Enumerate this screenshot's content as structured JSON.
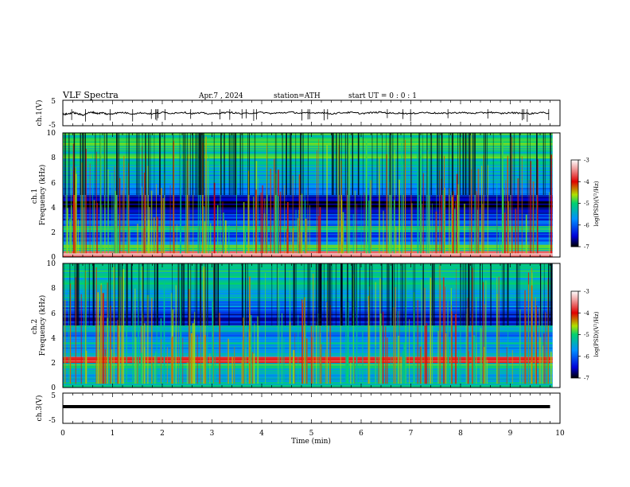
{
  "header": {
    "title": "VLF  Spectra",
    "date": "Apr.7  , 2024",
    "station": "station=ATH",
    "start": "start  UT  =   0  : 0  : 1"
  },
  "chart_data": [
    {
      "type": "line",
      "name": "ch1-waveform",
      "ylabel": "ch.1(V)",
      "ylim": [
        -5,
        5
      ],
      "ytick_labels": [
        "5",
        "-5"
      ],
      "x": [
        0,
        0.1,
        0.2,
        0.3,
        0.4,
        0.5,
        0.6,
        0.7,
        0.8,
        0.9,
        1.0,
        1.2,
        1.4,
        1.6,
        1.8,
        2.0,
        2.2,
        2.4,
        2.6,
        2.8,
        3.0,
        3.2,
        3.4,
        3.6,
        3.8,
        4.0,
        4.2,
        4.4,
        4.6,
        4.8,
        5.0,
        5.2,
        5.4,
        5.6,
        5.8,
        6.0,
        6.2,
        6.4,
        6.6,
        6.8,
        7.0,
        7.2,
        7.4,
        7.6,
        7.8,
        8.0,
        8.2,
        8.4,
        8.6,
        8.8,
        9.0,
        9.2,
        9.4,
        9.6,
        9.8
      ],
      "y": [
        -0.5,
        -0.4,
        0.2,
        -0.3,
        -0.8,
        0.0,
        0.3,
        -0.2,
        0.1,
        -0.5,
        -0.2,
        0.2,
        -0.3,
        0.1,
        -0.4,
        0.2,
        -0.1,
        0.3,
        -0.2,
        0.0,
        -0.4,
        0.1,
        0.2,
        -0.3,
        0.0,
        0.2,
        -0.2,
        0.1,
        0.3,
        -0.1,
        0.0,
        0.2,
        -0.3,
        0.1,
        0.2,
        -0.2,
        0.1,
        0.3,
        -0.1,
        0.0,
        -0.3,
        0.2,
        0.1,
        -0.2,
        0.0,
        0.2,
        -0.1,
        0.0,
        0.3,
        -0.2,
        0.1,
        0.0,
        -0.3,
        0.2,
        -0.1
      ]
    },
    {
      "type": "heatmap",
      "name": "ch1-spectrogram",
      "ylabel": "ch.1\nFrequency (kHz)",
      "xlim": [
        0,
        10
      ],
      "ylim": [
        0,
        10
      ],
      "ytick_labels": [
        "0",
        "2",
        "4",
        "6",
        "8",
        "10"
      ],
      "colorbar_label": "log(PSD)(V²/Hz)",
      "colorbar_range": [
        -7,
        -3
      ],
      "colorbar_tick_labels": [
        "-3",
        "-4",
        "-5",
        "-6",
        "-7"
      ],
      "colorbar_colors": [
        "#000000",
        "#0000d8",
        "#0090ff",
        "#00d070",
        "#b0e000",
        "#e00000",
        "#f0a0a0",
        "#ffffff"
      ],
      "band_log_psd": [
        {
          "f": [
            0.0,
            0.5
          ],
          "v": -3.6
        },
        {
          "f": [
            0.5,
            1.0
          ],
          "v": -5.0
        },
        {
          "f": [
            1.0,
            1.5
          ],
          "v": -5.9
        },
        {
          "f": [
            1.5,
            2.0
          ],
          "v": -6.2
        },
        {
          "f": [
            2.0,
            2.5
          ],
          "v": -5.1
        },
        {
          "f": [
            2.5,
            3.0
          ],
          "v": -6.0
        },
        {
          "f": [
            3.0,
            3.5
          ],
          "v": -6.3
        },
        {
          "f": [
            3.5,
            4.0
          ],
          "v": -6.5
        },
        {
          "f": [
            4.0,
            4.5
          ],
          "v": -6.9
        },
        {
          "f": [
            4.5,
            5.0
          ],
          "v": -6.4
        },
        {
          "f": [
            5.0,
            6.0
          ],
          "v": -5.8
        },
        {
          "f": [
            6.0,
            7.0
          ],
          "v": -5.5
        },
        {
          "f": [
            7.0,
            8.0
          ],
          "v": -5.3
        },
        {
          "f": [
            8.0,
            9.0
          ],
          "v": -5.1
        },
        {
          "f": [
            9.0,
            10.0
          ],
          "v": -5.0
        }
      ]
    },
    {
      "type": "heatmap",
      "name": "ch2-spectrogram",
      "ylabel": "ch.2\nFrequency (kHz)",
      "xlim": [
        0,
        10
      ],
      "ylim": [
        0,
        10
      ],
      "ytick_labels": [
        "0",
        "2",
        "4",
        "6",
        "8",
        "10"
      ],
      "colorbar_label": "log(PSD)(V²/Hz)",
      "colorbar_range": [
        -7,
        -3
      ],
      "colorbar_tick_labels": [
        "-3",
        "-4",
        "-5",
        "-6",
        "-7"
      ],
      "colorbar_colors": [
        "#000000",
        "#0000d8",
        "#0090ff",
        "#00d070",
        "#b0e000",
        "#e00000",
        "#f0a0a0",
        "#ffffff"
      ],
      "band_log_psd": [
        {
          "f": [
            0.0,
            0.5
          ],
          "v": -5.4
        },
        {
          "f": [
            0.5,
            1.0
          ],
          "v": -5.5
        },
        {
          "f": [
            1.0,
            1.5
          ],
          "v": -5.6
        },
        {
          "f": [
            1.5,
            2.0
          ],
          "v": -5.0
        },
        {
          "f": [
            2.0,
            2.5
          ],
          "v": -3.8
        },
        {
          "f": [
            2.5,
            3.0
          ],
          "v": -5.4
        },
        {
          "f": [
            3.0,
            3.5
          ],
          "v": -5.7
        },
        {
          "f": [
            3.5,
            4.0
          ],
          "v": -5.5
        },
        {
          "f": [
            4.0,
            4.5
          ],
          "v": -5.9
        },
        {
          "f": [
            4.5,
            5.0
          ],
          "v": -5.3
        },
        {
          "f": [
            5.0,
            6.0
          ],
          "v": -6.4
        },
        {
          "f": [
            6.0,
            7.0
          ],
          "v": -5.9
        },
        {
          "f": [
            7.0,
            8.0
          ],
          "v": -5.5
        },
        {
          "f": [
            8.0,
            9.0
          ],
          "v": -5.3
        },
        {
          "f": [
            9.0,
            10.0
          ],
          "v": -5.2
        }
      ]
    },
    {
      "type": "line",
      "name": "ch3-waveform",
      "ylabel": "ch.3(V)",
      "ylim": [
        -5,
        5
      ],
      "ytick_labels": [
        "5",
        "-5"
      ],
      "x": [
        0.0,
        9.8
      ],
      "y": [
        0.0,
        0.0
      ],
      "xlim": [
        0,
        10
      ],
      "xtick_labels": [
        "0",
        "1",
        "2",
        "3",
        "4",
        "5",
        "6",
        "7",
        "8",
        "9",
        "10"
      ],
      "xlabel": "Time  (min)"
    }
  ]
}
